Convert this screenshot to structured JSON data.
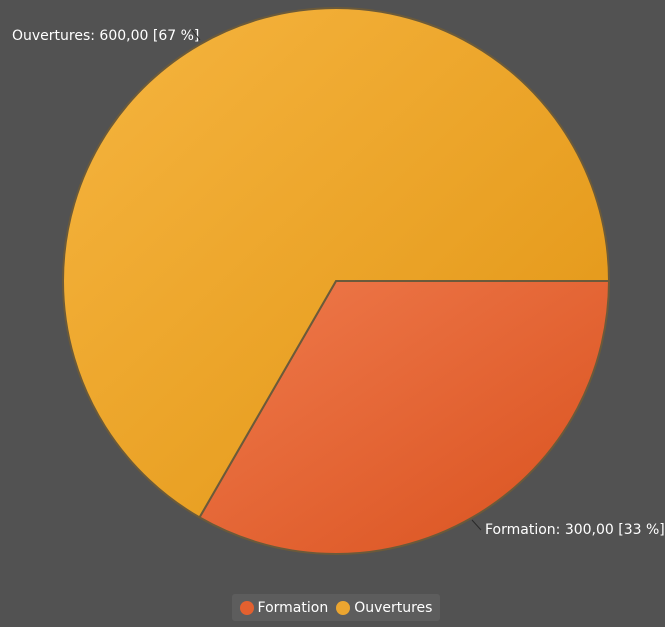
{
  "chart_data": {
    "type": "pie",
    "title": "",
    "slices": [
      {
        "name": "Ouvertures",
        "value": 600,
        "label": "Ouvertures: 600,00 [67 %]",
        "color": "#eba530"
      },
      {
        "name": "Formation",
        "value": 300,
        "label": "Formation: 300,00 [33 %]",
        "color": "#e3602f"
      }
    ],
    "legend": {
      "position": "bottom",
      "items": [
        {
          "label": "Formation",
          "color": "#e3602f"
        },
        {
          "label": "Ouvertures",
          "color": "#eba530"
        }
      ]
    }
  }
}
